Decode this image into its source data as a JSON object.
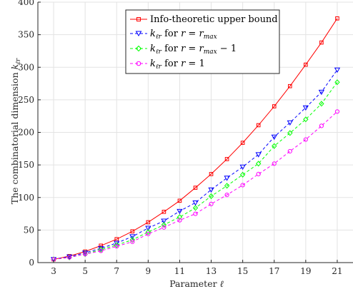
{
  "chart_data": {
    "type": "line",
    "xlabel": "Parameter ℓ",
    "ylabel": "The combinatorial dimension kℓr",
    "xlim": [
      2,
      22
    ],
    "ylim": [
      0,
      400
    ],
    "xticks": [
      3,
      5,
      7,
      9,
      11,
      13,
      15,
      17,
      19,
      21
    ],
    "yticks": [
      0,
      50,
      100,
      150,
      200,
      250,
      300,
      350,
      400
    ],
    "grid": true,
    "legend_position": "top-right",
    "x": [
      3,
      4,
      5,
      6,
      7,
      8,
      9,
      10,
      11,
      12,
      13,
      14,
      15,
      16,
      17,
      18,
      19,
      20,
      21
    ],
    "series": [
      {
        "name": "Info-theoretic upper bound",
        "name_parts": {
          "text": "Info-theoretic upper bound"
        },
        "color": "#ff0000",
        "marker": "square",
        "dash": "solid",
        "values": [
          5,
          10,
          17,
          26,
          36,
          48,
          62,
          78,
          95,
          115,
          136,
          159,
          184,
          211,
          240,
          271,
          304,
          338,
          375
        ]
      },
      {
        "name": "kℓr for r = r_max",
        "name_parts": {
          "k": "k",
          "sub": "ℓr",
          "mid": " for ",
          "r": "r",
          "eq": " = ",
          "r2": "r",
          "sub2": "max",
          "tail": ""
        },
        "color": "#0000ff",
        "marker": "triangle-down",
        "dash": "dashed",
        "values": [
          5,
          9,
          15,
          22,
          30,
          40,
          53,
          64,
          79,
          92,
          112,
          130,
          147,
          166,
          193,
          215,
          238,
          262,
          296
        ]
      },
      {
        "name": "kℓr for r = r_max − 1",
        "name_parts": {
          "k": "k",
          "sub": "ℓr",
          "mid": " for ",
          "r": "r",
          "eq": " = ",
          "r2": "r",
          "sub2": "max",
          "tail": " − 1"
        },
        "color": "#00ff00",
        "marker": "diamond",
        "dash": "dashed",
        "values": [
          5,
          8,
          13,
          20,
          27,
          35,
          47,
          58,
          70,
          84,
          102,
          118,
          135,
          152,
          179,
          199,
          220,
          244,
          277
        ]
      },
      {
        "name": "kℓr for r = 1",
        "name_parts": {
          "k": "k",
          "sub": "ℓr",
          "mid": " for ",
          "r": "r",
          "eq": " = ",
          "r2": "1",
          "sub2": "",
          "tail": ""
        },
        "color": "#ff00ff",
        "marker": "circle",
        "dash": "dashed",
        "values": [
          5,
          8,
          13,
          18,
          25,
          32,
          44,
          54,
          65,
          75,
          90,
          104,
          119,
          136,
          152,
          171,
          189,
          210,
          232
        ]
      }
    ]
  },
  "axis_text": {
    "xlabel_main": "Parameter ",
    "xlabel_symbol": "ℓ",
    "ylabel_main": "The combinatorial dimension ",
    "ylabel_k": "k",
    "ylabel_sub": "ℓr"
  }
}
